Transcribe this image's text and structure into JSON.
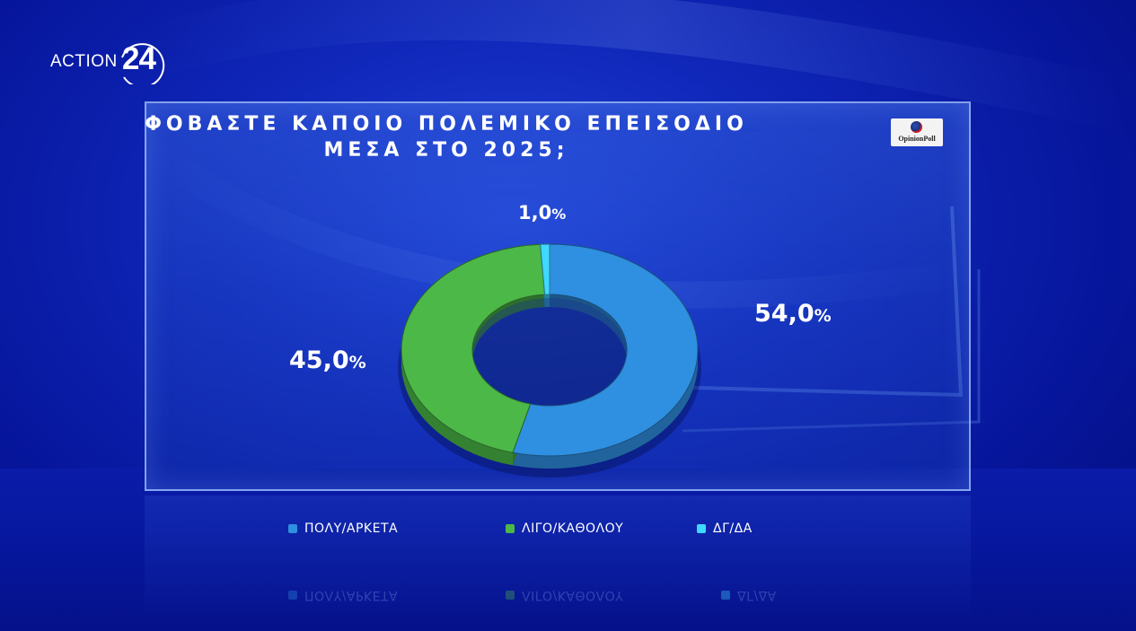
{
  "brand": {
    "logo_word": "ACTION",
    "logo_number": "24"
  },
  "pollster": {
    "name": "OpinionPoll"
  },
  "chart_data": {
    "type": "pie",
    "style": "donut",
    "title_lines": [
      "ΦΟΒΑΣΤΕ ΚΑΠΟΙΟ ΠΟΛΕΜΙΚΟ ΕΠΕΙΣΟΔΙΟ",
      "ΜΕΣΑ ΣΤΟ 2025;"
    ],
    "categories": [
      "ΠΟΛΥ/ΑΡΚΕΤΑ",
      "ΛΙΓΟ/ΚΑΘΟΛΟΥ",
      "ΔΓ/ΔΑ"
    ],
    "values": [
      54.0,
      45.0,
      1.0
    ],
    "value_labels": [
      "54,0",
      "45,0",
      "1,0"
    ],
    "unit": "%",
    "colors": [
      "#2f8fe0",
      "#4cb848",
      "#3fd8ff"
    ],
    "legend_position": "bottom"
  }
}
